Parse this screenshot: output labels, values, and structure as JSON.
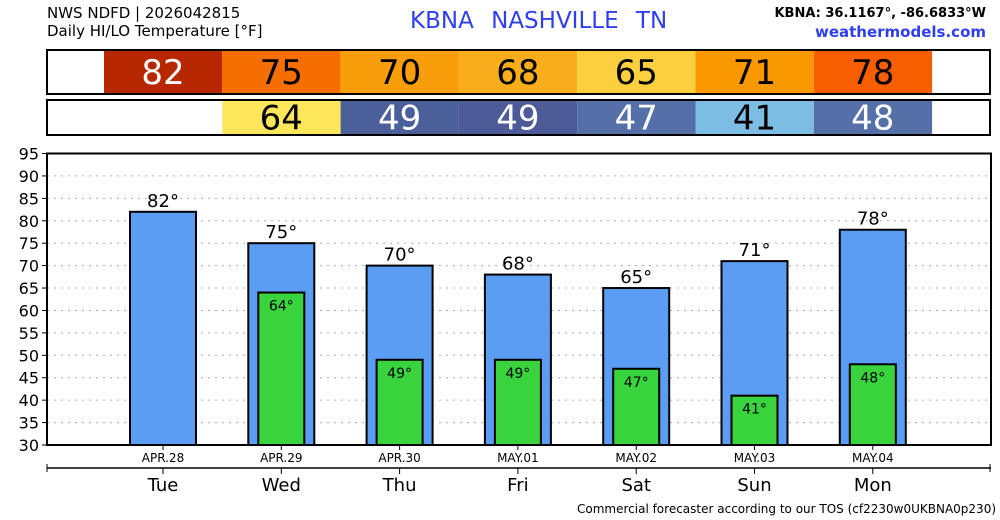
{
  "header": {
    "source": "NWS NDFD | 2026042815",
    "subtitle": "Daily HI/LO Temperature [°F]",
    "location": "KBNA  NASHVILLE     TN",
    "coords": "KBNA: 36.1167°, -86.6833°W",
    "site": "weathermodels.com"
  },
  "footer": "Commercial forecaster according to our TOS (cf2230w0UKBNA0p230)",
  "hi_row": {
    "values": [
      "82",
      "75",
      "70",
      "68",
      "65",
      "71",
      "78"
    ],
    "colors": [
      "#b82800",
      "#f56e00",
      "#f79e0a",
      "#f9ad1b",
      "#fccf3e",
      "#fa9800",
      "#f65e00"
    ],
    "text_colors": [
      "#fff",
      "#000",
      "#000",
      "#000",
      "#000",
      "#000",
      "#000"
    ]
  },
  "lo_row": {
    "values": [
      "",
      "64",
      "49",
      "49",
      "47",
      "41",
      "48"
    ],
    "colors": [
      "#fff",
      "#fce75a",
      "#4b5f9b",
      "#4d5b98",
      "#5570a8",
      "#7cbde3",
      "#5570a8"
    ],
    "text_colors": [
      "#000",
      "#000",
      "#fff",
      "#fff",
      "#fff",
      "#000",
      "#fff"
    ]
  },
  "chart_data": {
    "type": "bar",
    "categories": [
      "APR.28",
      "APR.29",
      "APR.30",
      "MAY.01",
      "MAY.02",
      "MAY.03",
      "MAY.04"
    ],
    "days": [
      "Tue",
      "Wed",
      "Thu",
      "Fri",
      "Sat",
      "Sun",
      "Mon"
    ],
    "series": [
      {
        "name": "High",
        "color": "#5a9df2",
        "values": [
          82,
          75,
          70,
          68,
          65,
          71,
          78
        ]
      },
      {
        "name": "Low",
        "color": "#39d43d",
        "values": [
          null,
          64,
          49,
          49,
          47,
          41,
          48
        ]
      }
    ],
    "ylim": [
      30,
      95
    ],
    "yticks": [
      30,
      35,
      40,
      45,
      50,
      55,
      60,
      65,
      70,
      75,
      80,
      85,
      90,
      95
    ],
    "grid": true
  }
}
